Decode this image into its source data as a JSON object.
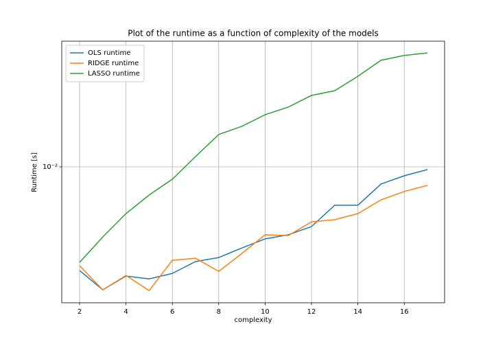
{
  "chart_data": {
    "type": "line",
    "title": "Plot of the runtime as a function of complexity of the models",
    "x_label": "complexity",
    "y_label": "Runtime [s]",
    "x": [
      2,
      3,
      4,
      5,
      6,
      7,
      8,
      9,
      10,
      11,
      12,
      13,
      14,
      15,
      16,
      17
    ],
    "series": [
      {
        "name": "OLS runtime",
        "color": "#1f77b4",
        "values": [
          0.00314,
          0.00253,
          0.00295,
          0.00286,
          0.00304,
          0.00347,
          0.00363,
          0.00404,
          0.00447,
          0.00468,
          0.00513,
          0.00651,
          0.00651,
          0.00825,
          0.00905,
          0.0097
        ]
      },
      {
        "name": "RIDGE runtime",
        "color": "#ff7f0e",
        "values": [
          0.00331,
          0.00253,
          0.00297,
          0.00251,
          0.00352,
          0.0036,
          0.00311,
          0.0038,
          0.00468,
          0.00464,
          0.00541,
          0.00554,
          0.00593,
          0.00692,
          0.00759,
          0.00813
        ]
      },
      {
        "name": "LASSO runtime",
        "color": "#2ca02c",
        "values": [
          0.00344,
          0.00457,
          0.00593,
          0.0073,
          0.00871,
          0.01122,
          0.01435,
          0.01573,
          0.0179,
          0.0195,
          0.0222,
          0.0234,
          0.0275,
          0.0329,
          0.0347,
          0.0357
        ]
      }
    ],
    "xlim": [
      1.23,
      17.74
    ],
    "xticks": [
      2,
      4,
      6,
      8,
      10,
      12,
      14,
      16
    ],
    "ylim": [
      0.00219,
      0.0407
    ],
    "yticks": [
      {
        "value": 0.01,
        "label": "10⁻²"
      }
    ],
    "yscale": "log",
    "grid": true,
    "legend": "upper left"
  }
}
